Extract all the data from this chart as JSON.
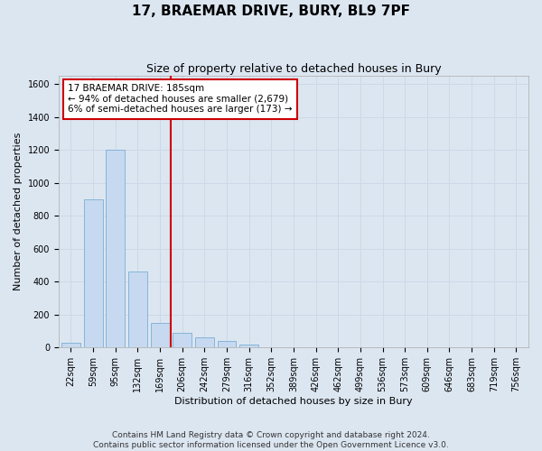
{
  "title": "17, BRAEMAR DRIVE, BURY, BL9 7PF",
  "subtitle": "Size of property relative to detached houses in Bury",
  "xlabel": "Distribution of detached houses by size in Bury",
  "ylabel": "Number of detached properties",
  "footer_line1": "Contains HM Land Registry data © Crown copyright and database right 2024.",
  "footer_line2": "Contains public sector information licensed under the Open Government Licence v3.0.",
  "bar_categories": [
    "22sqm",
    "59sqm",
    "95sqm",
    "132sqm",
    "169sqm",
    "206sqm",
    "242sqm",
    "279sqm",
    "316sqm",
    "352sqm",
    "389sqm",
    "426sqm",
    "462sqm",
    "499sqm",
    "536sqm",
    "573sqm",
    "609sqm",
    "646sqm",
    "683sqm",
    "719sqm",
    "756sqm"
  ],
  "bar_values": [
    30,
    900,
    1200,
    460,
    150,
    90,
    60,
    40,
    20,
    0,
    0,
    0,
    0,
    0,
    0,
    0,
    0,
    0,
    0,
    0,
    0
  ],
  "bar_color": "#c6d9f0",
  "bar_edge_color": "#7bafd4",
  "vline_x": 4.5,
  "vline_color": "#cc0000",
  "annotation_box_text": "17 BRAEMAR DRIVE: 185sqm\n← 94% of detached houses are smaller (2,679)\n6% of semi-detached houses are larger (173) →",
  "annotation_box_color": "#cc0000",
  "annotation_box_bg": "#ffffff",
  "ylim": [
    0,
    1650
  ],
  "yticks": [
    0,
    200,
    400,
    600,
    800,
    1000,
    1200,
    1400,
    1600
  ],
  "grid_color": "#cdd8e8",
  "background_color": "#dce6f1",
  "title_fontsize": 11,
  "subtitle_fontsize": 9,
  "axis_label_fontsize": 8,
  "tick_fontsize": 7,
  "footer_fontsize": 6.5,
  "annotation_fontsize": 7.5
}
